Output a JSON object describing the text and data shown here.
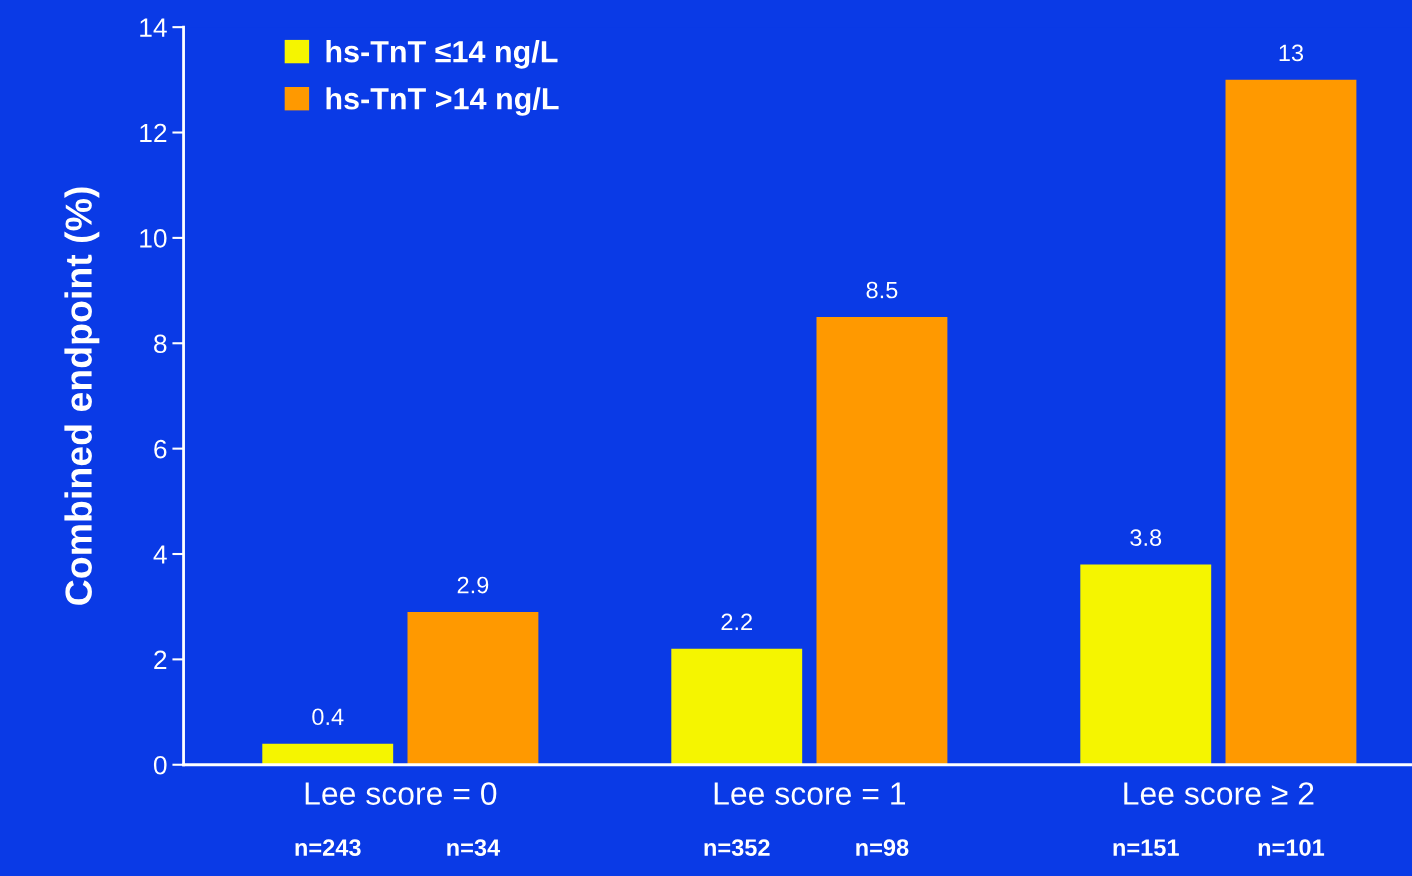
{
  "chart_data": {
    "type": "bar",
    "ylabel": "Combined endpoint (%)",
    "categories": [
      "Lee score = 0",
      "Lee score = 1",
      "Lee score ≥ 2"
    ],
    "series": [
      {
        "name": "hs-TnT ≤14 ng/L",
        "color": "#f5f500",
        "values": [
          0.4,
          2.2,
          3.8
        ]
      },
      {
        "name": "hs-TnT >14 ng/L",
        "color": "#ff9900",
        "values": [
          2.9,
          8.5,
          13
        ]
      }
    ],
    "ylim": [
      0,
      14
    ],
    "yticks": [
      0,
      2,
      4,
      6,
      8,
      10,
      12,
      14
    ],
    "data_labels": true,
    "grid": false,
    "legend": "top left",
    "annotations": [
      "n=243",
      "n=34",
      "n=352",
      "n=98",
      "n=151",
      "n=101"
    ]
  }
}
